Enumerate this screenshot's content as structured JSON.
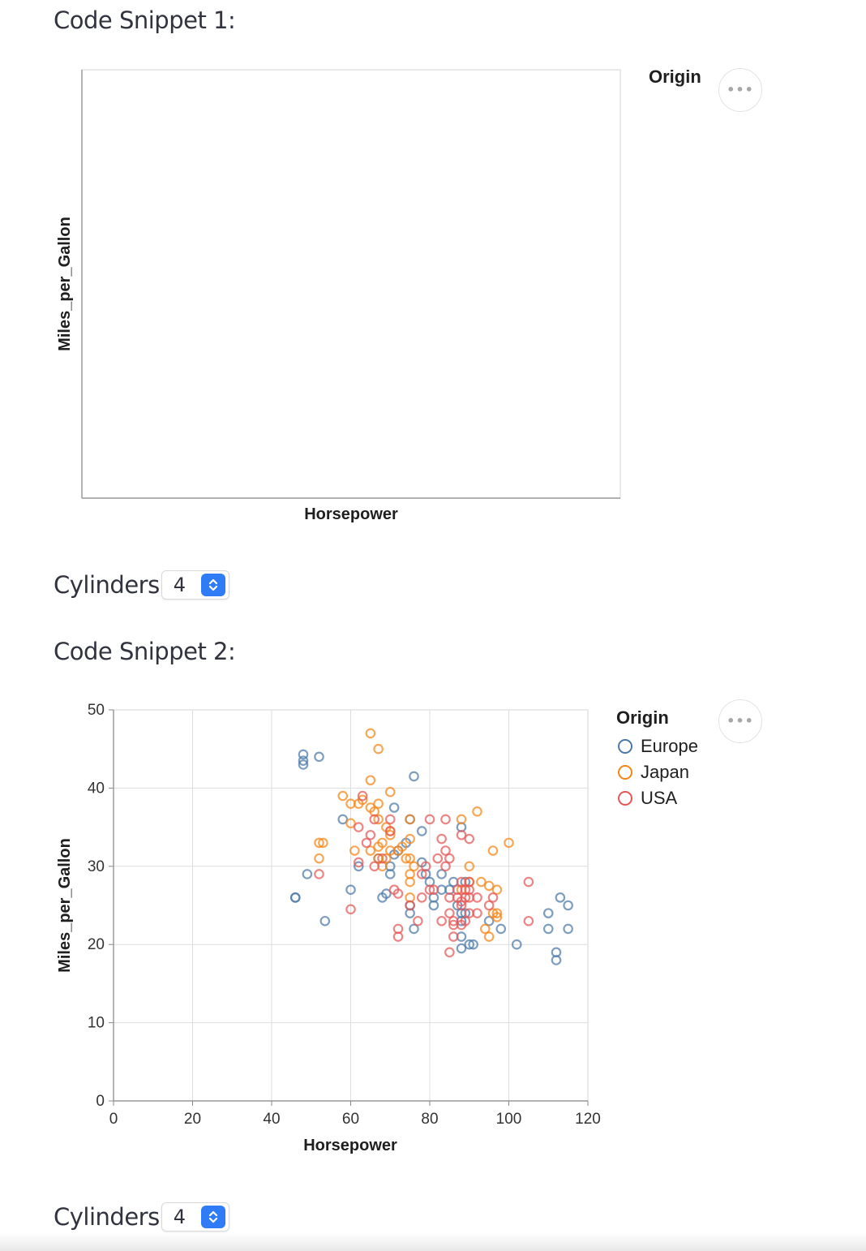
{
  "snippet1": {
    "title": "Code Snippet 1:",
    "chart": {
      "xlabel": "Horsepower",
      "ylabel": "Miles_per_Gallon",
      "legend_title": "Origin"
    },
    "menu_icon": "more-horizontal-icon",
    "cylinders": {
      "label": "Cylinders",
      "value": "4",
      "icon": "up-down-chevron-icon"
    }
  },
  "snippet2": {
    "title": "Code Snippet 2:",
    "menu_icon": "more-horizontal-icon",
    "cylinders": {
      "label": "Cylinders",
      "value": "4",
      "icon": "up-down-chevron-icon"
    }
  },
  "chart_data": [
    {
      "type": "scatter",
      "xlabel": "Horsepower",
      "ylabel": "Miles_per_Gallon",
      "legend_title": "Origin",
      "series": [],
      "grid": false
    },
    {
      "type": "scatter",
      "xlabel": "Horsepower",
      "ylabel": "Miles_per_Gallon",
      "xlim": [
        0,
        120
      ],
      "ylim": [
        0,
        50
      ],
      "xticks": [
        0,
        20,
        40,
        60,
        80,
        100,
        120
      ],
      "yticks": [
        0,
        10,
        20,
        30,
        40,
        50
      ],
      "grid": true,
      "legend_title": "Origin",
      "legend_position": "top-right",
      "series": [
        {
          "name": "Europe",
          "color": "#4c78a8",
          "points": [
            [
              46,
              26
            ],
            [
              46,
              26
            ],
            [
              48,
              43
            ],
            [
              48,
              43.5
            ],
            [
              48,
              44.3
            ],
            [
              52,
              44
            ],
            [
              49,
              29
            ],
            [
              53.5,
              23
            ],
            [
              58,
              36
            ],
            [
              60,
              27
            ],
            [
              62,
              30
            ],
            [
              67,
              31
            ],
            [
              68,
              26
            ],
            [
              69,
              26.5
            ],
            [
              70,
              29
            ],
            [
              70,
              30
            ],
            [
              71,
              31.5
            ],
            [
              72,
              32
            ],
            [
              71,
              37.5
            ],
            [
              74,
              33
            ],
            [
              75,
              36
            ],
            [
              75,
              24
            ],
            [
              75,
              25
            ],
            [
              76,
              22
            ],
            [
              76,
              41.5
            ],
            [
              78,
              34.5
            ],
            [
              78,
              30.5
            ],
            [
              79,
              29
            ],
            [
              80,
              28
            ],
            [
              81,
              26
            ],
            [
              81,
              25
            ],
            [
              83,
              29
            ],
            [
              83,
              27
            ],
            [
              85,
              27
            ],
            [
              86,
              28
            ],
            [
              87,
              25
            ],
            [
              88,
              24
            ],
            [
              88,
              23
            ],
            [
              88,
              21
            ],
            [
              88,
              35
            ],
            [
              88,
              19.5
            ],
            [
              89,
              28
            ],
            [
              89,
              24
            ],
            [
              90,
              20
            ],
            [
              91,
              20
            ],
            [
              95,
              23
            ],
            [
              98,
              22
            ],
            [
              102,
              20
            ],
            [
              110,
              24
            ],
            [
              110,
              22
            ],
            [
              112,
              19
            ],
            [
              112,
              18
            ],
            [
              113,
              26
            ],
            [
              115,
              25
            ],
            [
              115,
              22
            ]
          ]
        },
        {
          "name": "Japan",
          "color": "#f58518",
          "points": [
            [
              52,
              33
            ],
            [
              52,
              31
            ],
            [
              53,
              33
            ],
            [
              58,
              39
            ],
            [
              60,
              38
            ],
            [
              60,
              35.5
            ],
            [
              61,
              32
            ],
            [
              62,
              38
            ],
            [
              63,
              38.5
            ],
            [
              65,
              47
            ],
            [
              65,
              41
            ],
            [
              65,
              37.5
            ],
            [
              65,
              32
            ],
            [
              66,
              37
            ],
            [
              67,
              45
            ],
            [
              67,
              38
            ],
            [
              67,
              36
            ],
            [
              67,
              32.5
            ],
            [
              67,
              31
            ],
            [
              68,
              33
            ],
            [
              68,
              30
            ],
            [
              69,
              35
            ],
            [
              69,
              31
            ],
            [
              70,
              39.5
            ],
            [
              70,
              34
            ],
            [
              70,
              34.5
            ],
            [
              70,
              32
            ],
            [
              72,
              32
            ],
            [
              73,
              32.5
            ],
            [
              74,
              31
            ],
            [
              75,
              33.5
            ],
            [
              75,
              28
            ],
            [
              75,
              29
            ],
            [
              75,
              26
            ],
            [
              75,
              36
            ],
            [
              75,
              31
            ],
            [
              76,
              30
            ],
            [
              88,
              36
            ],
            [
              88,
              27
            ],
            [
              90,
              30
            ],
            [
              90,
              28
            ],
            [
              92,
              37
            ],
            [
              93,
              28
            ],
            [
              94,
              22
            ],
            [
              95,
              27.5
            ],
            [
              95,
              21
            ],
            [
              96,
              32
            ],
            [
              96,
              24
            ],
            [
              97,
              27
            ],
            [
              97,
              23.5
            ],
            [
              97,
              24
            ],
            [
              100,
              33
            ]
          ]
        },
        {
          "name": "USA",
          "color": "#e45756",
          "points": [
            [
              52,
              29
            ],
            [
              60,
              24.5
            ],
            [
              62,
              35
            ],
            [
              62,
              30.5
            ],
            [
              63,
              39
            ],
            [
              64,
              33
            ],
            [
              65,
              34
            ],
            [
              66,
              36
            ],
            [
              66,
              30
            ],
            [
              68,
              31
            ],
            [
              70,
              36
            ],
            [
              70,
              34.5
            ],
            [
              71,
              27
            ],
            [
              72,
              26.5
            ],
            [
              72,
              22
            ],
            [
              72,
              21
            ],
            [
              75,
              25
            ],
            [
              77,
              23
            ],
            [
              78,
              26
            ],
            [
              78,
              29
            ],
            [
              79,
              30
            ],
            [
              80,
              36
            ],
            [
              80,
              27
            ],
            [
              81,
              27
            ],
            [
              82,
              31
            ],
            [
              83,
              33.5
            ],
            [
              83,
              23
            ],
            [
              84,
              36
            ],
            [
              84,
              32
            ],
            [
              84,
              30
            ],
            [
              85,
              26
            ],
            [
              85,
              31
            ],
            [
              85,
              24
            ],
            [
              85,
              19
            ],
            [
              86,
              22.5
            ],
            [
              86,
              23
            ],
            [
              86,
              21
            ],
            [
              87,
              27
            ],
            [
              87,
              26
            ],
            [
              88,
              34
            ],
            [
              88,
              25
            ],
            [
              88,
              22.5
            ],
            [
              88,
              25.5
            ],
            [
              88,
              28
            ],
            [
              89,
              27
            ],
            [
              89,
              26
            ],
            [
              89,
              23
            ],
            [
              90,
              33.5
            ],
            [
              90,
              27
            ],
            [
              90,
              28
            ],
            [
              90,
              24
            ],
            [
              90,
              26
            ],
            [
              92,
              26
            ],
            [
              92,
              24
            ],
            [
              95,
              25
            ],
            [
              96,
              26
            ],
            [
              105,
              28
            ],
            [
              105,
              23
            ]
          ]
        }
      ]
    }
  ]
}
